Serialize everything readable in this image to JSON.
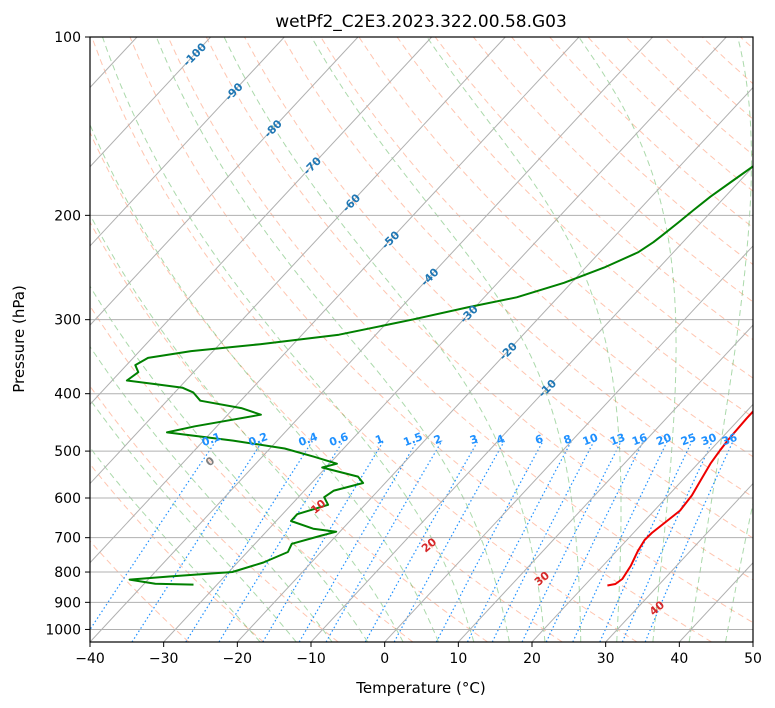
{
  "chart_data": {
    "type": "line",
    "title": "wetPf2_C2E3.2023.322.00.58.G03",
    "xlabel": "Temperature (°C)",
    "ylabel": "Pressure (hPa)",
    "xlim": [
      -40,
      50
    ],
    "ylim": [
      1050,
      100
    ],
    "y_scale": "log",
    "x_ticks": [
      -40,
      -30,
      -20,
      -10,
      0,
      10,
      20,
      30,
      40,
      50
    ],
    "y_ticks": [
      100,
      200,
      300,
      400,
      500,
      600,
      700,
      800,
      900,
      1000
    ],
    "grid": true,
    "temperature_color": "#ee0000",
    "dewpoint_color": "#008000",
    "dry_adiabat_color": "#ff7f50",
    "moist_adiabat_color": "#2ca02c",
    "mixing_ratio_color": "#1e90ff",
    "isotherm_label_color": "#1f77b4",
    "dry_adiabat_label_color": "#d62728",
    "series": [
      {
        "points": [
          [
            24.5,
            100
          ],
          [
            23.7,
            103
          ],
          [
            22.8,
            107
          ],
          [
            21.8,
            112
          ],
          [
            21.0,
            118
          ],
          [
            20.5,
            124
          ],
          [
            20.0,
            131
          ],
          [
            19.4,
            137
          ],
          [
            18.6,
            143
          ],
          [
            17.9,
            149
          ],
          [
            17.4,
            156
          ],
          [
            16.8,
            163
          ],
          [
            16.3,
            170
          ],
          [
            15.6,
            178
          ],
          [
            14.9,
            186
          ],
          [
            14.3,
            194
          ],
          [
            14.0,
            200
          ],
          [
            14.1,
            206
          ],
          [
            14.4,
            213
          ],
          [
            14.8,
            223
          ],
          [
            15.6,
            236
          ],
          [
            16.4,
            253
          ],
          [
            17.5,
            276
          ],
          [
            18.5,
            302
          ],
          [
            19.2,
            323
          ],
          [
            19.8,
            342
          ],
          [
            20.5,
            361
          ],
          [
            20.8,
            378
          ],
          [
            20.8,
            392
          ],
          [
            20.9,
            410
          ],
          [
            20.9,
            440
          ],
          [
            21.1,
            478
          ],
          [
            21.3,
            497
          ],
          [
            21.7,
            525
          ],
          [
            22.5,
            561
          ],
          [
            23.2,
            594
          ],
          [
            23.5,
            630
          ],
          [
            22.9,
            664
          ],
          [
            22.5,
            687
          ],
          [
            22.4,
            706
          ],
          [
            22.9,
            738
          ],
          [
            23.8,
            781
          ],
          [
            24.3,
            822
          ],
          [
            24.0,
            838
          ],
          [
            23.1,
            843
          ]
        ]
      },
      {
        "points": [
          [
            -2.5,
            100
          ],
          [
            -4.0,
            104
          ],
          [
            -5.5,
            110
          ],
          [
            -6.5,
            117
          ],
          [
            -7.3,
            125
          ],
          [
            -8.1,
            134
          ],
          [
            -8.8,
            145
          ],
          [
            -9.5,
            155
          ],
          [
            -10.0,
            165
          ],
          [
            -11.0,
            175
          ],
          [
            -12.0,
            186
          ],
          [
            -12.6,
            196
          ],
          [
            -13.1,
            206
          ],
          [
            -13.7,
            217
          ],
          [
            -14.0,
            222
          ],
          [
            -14.8,
            231
          ],
          [
            -17.5,
            245
          ],
          [
            -21.0,
            260
          ],
          [
            -25.6,
            275
          ],
          [
            -31.0,
            286
          ],
          [
            -37.0,
            300
          ],
          [
            -45.0,
            318
          ],
          [
            -54.5,
            330
          ],
          [
            -63.0,
            339
          ],
          [
            -68.0,
            348
          ],
          [
            -68.8,
            358
          ],
          [
            -67.5,
            368
          ],
          [
            -68.0,
            380
          ],
          [
            -64.0,
            385
          ],
          [
            -59.5,
            391
          ],
          [
            -57.5,
            398
          ],
          [
            -55.5,
            411
          ],
          [
            -49.0,
            423
          ],
          [
            -45.5,
            434
          ],
          [
            -53.0,
            454
          ],
          [
            -56.0,
            465
          ],
          [
            -46.0,
            480
          ],
          [
            -38.0,
            495
          ],
          [
            -33.0,
            511
          ],
          [
            -29.0,
            525
          ],
          [
            -30.5,
            533
          ],
          [
            -24.5,
            552
          ],
          [
            -23.0,
            566
          ],
          [
            -26.0,
            583
          ],
          [
            -26.5,
            598
          ],
          [
            -25.0,
            616
          ],
          [
            -28.0,
            639
          ],
          [
            -28.0,
            656
          ],
          [
            -24.0,
            676
          ],
          [
            -20.5,
            684
          ],
          [
            -22.0,
            694
          ],
          [
            -25.0,
            717
          ],
          [
            -24.5,
            740
          ],
          [
            -26.5,
            771
          ],
          [
            -29.5,
            800
          ],
          [
            -37.5,
            814
          ],
          [
            -42.5,
            824
          ],
          [
            -38.5,
            837
          ],
          [
            -33.2,
            840
          ]
        ]
      }
    ],
    "dry_adiabat_labels": [
      "0",
      "10",
      "20",
      "30",
      "40"
    ],
    "isotherm_labels": [
      "-100",
      "-90",
      "-80",
      "-70",
      "-60",
      "-50",
      "-40",
      "-30",
      "-20",
      "-10"
    ],
    "mixing_ratio_labels": [
      "0.1",
      "0.2",
      "0.4",
      "0.6",
      "1",
      "1.5",
      "2",
      "3",
      "4",
      "6",
      "8",
      "10",
      "13",
      "16",
      "20",
      "25",
      "30",
      "36"
    ]
  }
}
